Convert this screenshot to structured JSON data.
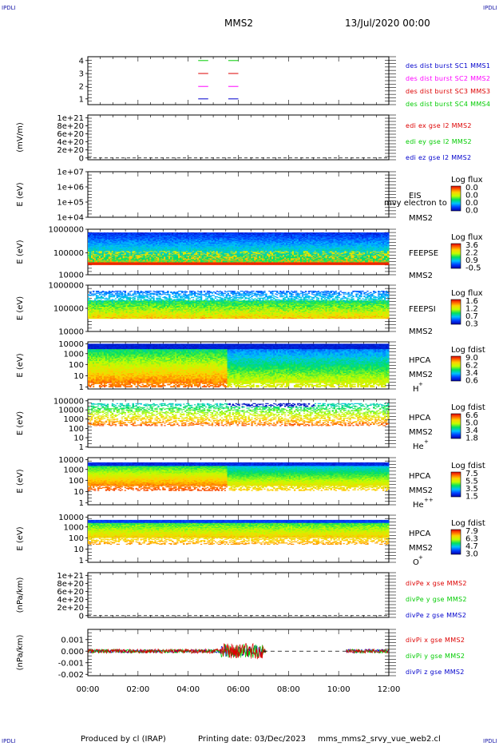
{
  "header": {
    "corner_left_top": "IPDLI",
    "corner_right_top": "IPDLI",
    "corner_left_bottom": "IPDLI",
    "corner_right_bottom": "IPDLI",
    "title": "MMS2",
    "datetime": "13/Jul/2020 00:00"
  },
  "footer": {
    "produced_by": "Produced by cl (IRAP)",
    "printing_date": "Printing date: 03/Dec/2023",
    "file": "mms_mms2_srvy_vue_web2.cl"
  },
  "colors": {
    "mms1": "#00cc00",
    "mms2": "#ff00ff",
    "mms3": "#dd0000",
    "mms4": "#0000cc",
    "ex": "#dd0000",
    "ey": "#00cc00",
    "ez": "#0000cc"
  },
  "chart_data": {
    "type": "heatmap",
    "x_ticks": [
      "00:00",
      "02:00",
      "04:00",
      "06:00",
      "08:00",
      "10:00",
      "12:00"
    ],
    "x_range_hours": [
      0,
      12
    ],
    "panels": [
      {
        "id": "burst",
        "type": "line",
        "yticks": [
          "4",
          "3",
          "2",
          "1"
        ],
        "ylabel": "",
        "legend": [
          {
            "text": "des dist burst SC1 MMS1",
            "color": "#0000cc"
          },
          {
            "text": "des dist burst SC2 MMS2",
            "color": "#ff00ff"
          },
          {
            "text": "des dist burst SC3 MMS3",
            "color": "#dd0000"
          },
          {
            "text": "des dist burst SC4 MMS4",
            "color": "#00cc00"
          }
        ],
        "segments": [
          {
            "level": 4,
            "x": [
              4.4,
              4.8
            ],
            "color": "#00cc00"
          },
          {
            "level": 4,
            "x": [
              5.6,
              6.0
            ],
            "color": "#00cc00"
          },
          {
            "level": 3,
            "x": [
              4.4,
              4.8
            ],
            "color": "#dd0000"
          },
          {
            "level": 3,
            "x": [
              5.6,
              6.0
            ],
            "color": "#dd0000"
          },
          {
            "level": 2,
            "x": [
              4.4,
              4.8
            ],
            "color": "#ff00ff"
          },
          {
            "level": 2,
            "x": [
              5.6,
              6.0
            ],
            "color": "#ff00ff"
          },
          {
            "level": 1,
            "x": [
              4.4,
              4.8
            ],
            "color": "#0000cc"
          },
          {
            "level": 1,
            "x": [
              5.6,
              6.0
            ],
            "color": "#0000cc"
          }
        ]
      },
      {
        "id": "edi",
        "type": "line",
        "yticks": [
          "1e+21",
          "8e+20",
          "6e+20",
          "4e+20",
          "2e+20",
          "0"
        ],
        "ylabel": "(mV/m)",
        "legend": [
          {
            "text": "edi ex gse l2 MMS2",
            "color": "#dd0000"
          },
          {
            "text": "edi ey gse l2 MMS2",
            "color": "#00cc00"
          },
          {
            "text": "edi ez gse l2 MMS2",
            "color": "#0000cc"
          }
        ]
      },
      {
        "id": "eis",
        "type": "heatmap",
        "yticks": [
          "1e+07",
          "1e+06",
          "1e+05",
          "1e+04"
        ],
        "ylabel": "E (eV)",
        "side": [
          "EIS",
          "MMS2"
        ],
        "overlay": "mvy electron to",
        "cb_title": "Log flux",
        "cb_ticks": [
          "0.0",
          "0.0",
          "0.0",
          "0.0"
        ]
      },
      {
        "id": "feepse",
        "type": "heatmap",
        "yticks": [
          "1000000",
          "100000",
          "10000"
        ],
        "ylabel": "E (eV)",
        "side": [
          "FEEPSE",
          "MMS2"
        ],
        "cb_title": "Log flux",
        "cb_ticks": [
          "3.6",
          "2.2",
          "0.9",
          "-0.5"
        ]
      },
      {
        "id": "feepsi",
        "type": "heatmap",
        "yticks": [
          "1000000",
          "100000",
          "10000"
        ],
        "ylabel": "E (eV)",
        "side": [
          "FEEPSI",
          "MMS2"
        ],
        "cb_title": "Log flux",
        "cb_ticks": [
          "1.6",
          "1.2",
          "0.7",
          "0.3"
        ]
      },
      {
        "id": "hpca_h",
        "type": "heatmap",
        "yticks": [
          "10000",
          "1000",
          "100",
          "10",
          "1"
        ],
        "ylabel": "E (eV)",
        "side": [
          "HPCA",
          "MMS2",
          "H+"
        ],
        "cb_title": "Log fdist",
        "cb_ticks": [
          "9.0",
          "6.2",
          "3.4",
          "0.6"
        ]
      },
      {
        "id": "hpca_he",
        "type": "heatmap",
        "yticks": [
          "100000",
          "10000",
          "1000",
          "100",
          "10",
          "1"
        ],
        "ylabel": "E (eV)",
        "side": [
          "HPCA",
          "MMS2",
          "He+"
        ],
        "cb_title": "Log fdist",
        "cb_ticks": [
          "6.6",
          "5.0",
          "3.4",
          "1.8"
        ]
      },
      {
        "id": "hpca_hepp",
        "type": "heatmap",
        "yticks": [
          "10000",
          "1000",
          "100",
          "10",
          "1"
        ],
        "ylabel": "E (eV)",
        "side": [
          "HPCA",
          "MMS2",
          "He++"
        ],
        "cb_title": "Log fdist",
        "cb_ticks": [
          "7.5",
          "5.5",
          "3.5",
          "1.5"
        ]
      },
      {
        "id": "hpca_o",
        "type": "heatmap",
        "yticks": [
          "10000",
          "1000",
          "100",
          "10",
          "1"
        ],
        "ylabel": "E (eV)",
        "side": [
          "HPCA",
          "MMS2",
          "O+"
        ],
        "cb_title": "Log fdist",
        "cb_ticks": [
          "7.9",
          "6.3",
          "4.7",
          "3.0"
        ]
      },
      {
        "id": "divpe",
        "type": "line",
        "yticks": [
          "1e+21",
          "8e+20",
          "6e+20",
          "4e+20",
          "2e+20",
          "0"
        ],
        "ylabel": "(nPa/km)",
        "legend": [
          {
            "text": "divPe x gse MMS2",
            "color": "#dd0000"
          },
          {
            "text": "divPe y gse MMS2",
            "color": "#00cc00"
          },
          {
            "text": "divPe z gse MMS2",
            "color": "#0000cc"
          }
        ]
      },
      {
        "id": "divpi",
        "type": "line",
        "yticks": [
          "0.001",
          "0.000",
          "-0.001",
          "-0.002"
        ],
        "ylabel": "(nPa/km)",
        "legend": [
          {
            "text": "divPi x gse MMS2",
            "color": "#dd0000"
          },
          {
            "text": "divPi y gse MMS2",
            "color": "#00cc00"
          },
          {
            "text": "divPi z gse MMS2",
            "color": "#0000cc"
          }
        ]
      }
    ]
  }
}
